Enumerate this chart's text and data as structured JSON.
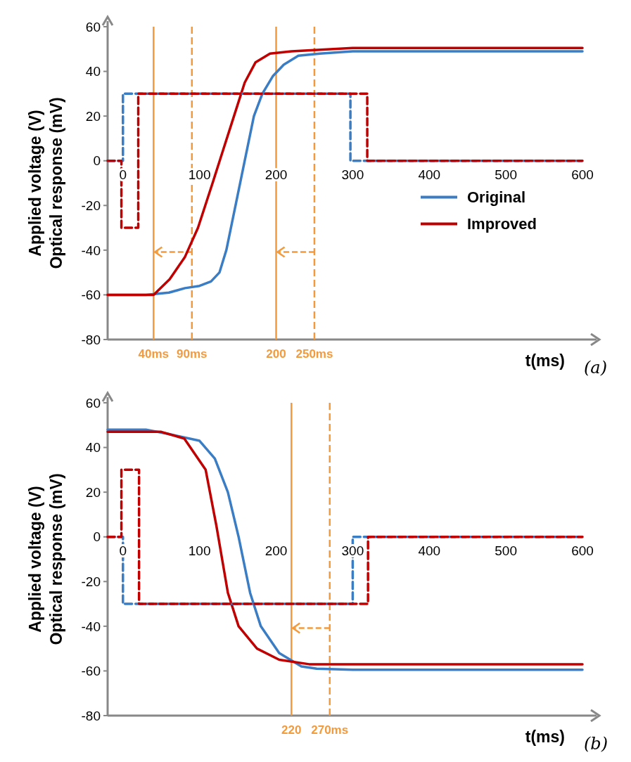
{
  "chart_data": [
    {
      "type": "line",
      "xlabel": "t(ms)",
      "ylabel": "Applied voltage (V)\nOptical response (mV)",
      "annotations": [
        "(a)"
      ],
      "xlim": [
        -20,
        600
      ],
      "ylim": [
        -80,
        60
      ],
      "xticks": [
        0,
        100,
        200,
        300,
        400,
        500,
        600
      ],
      "yticks": [
        -80,
        -60,
        -40,
        -20,
        0,
        20,
        40,
        60
      ],
      "legend": "right",
      "grid": false,
      "series": [
        {
          "name": "Original",
          "color": "#3a7dc4",
          "line_style": "solid",
          "x": [
            -20,
            30,
            60,
            81,
            100,
            115,
            126,
            135,
            150,
            159,
            171,
            182,
            196,
            210,
            229,
            257,
            300,
            400,
            500,
            600
          ],
          "values": [
            -60,
            -60,
            -59,
            -57,
            -56,
            -54,
            -50,
            -40,
            -15,
            0,
            20,
            30,
            38,
            43,
            47,
            48,
            49,
            49,
            49,
            49
          ]
        },
        {
          "name": "Improved",
          "color": "#c00000",
          "line_style": "solid",
          "x": [
            -20,
            20,
            40,
            61,
            81,
            98,
            117,
            131,
            145,
            159,
            173,
            192,
            220,
            300,
            400,
            500,
            600
          ],
          "values": [
            -60,
            -60,
            -60,
            -53,
            -43,
            -30,
            -10,
            5,
            20,
            35,
            44,
            48,
            49,
            50.5,
            50.5,
            50.5,
            50.5
          ]
        },
        {
          "color": "#3a7dc4",
          "line_style": "dashed",
          "x": [
            -20,
            0,
            0,
            297,
            297,
            600
          ],
          "values": [
            0,
            0,
            30,
            30,
            0,
            0
          ]
        },
        {
          "color": "#c00000",
          "line_style": "dashed",
          "x": [
            -20,
            -2,
            -2,
            20,
            20,
            319,
            319,
            600
          ],
          "values": [
            0,
            0,
            -30,
            -30,
            30,
            30,
            0,
            0
          ]
        }
      ],
      "ref_lines": [
        {
          "axis": "x",
          "value": 40,
          "label": "40ms",
          "color": "#f39a3c",
          "line_style": "solid"
        },
        {
          "axis": "x",
          "value": 90,
          "label": "90ms",
          "color": "#f39a3c",
          "line_style": "dashed"
        },
        {
          "axis": "x",
          "value": 200,
          "label": "200",
          "color": "#f39a3c",
          "line_style": "solid"
        },
        {
          "axis": "x",
          "value": 250,
          "label": "250ms",
          "color": "#f39a3c",
          "line_style": "dashed"
        }
      ]
    },
    {
      "type": "line",
      "xlabel": "t(ms)",
      "ylabel": "Applied voltage (V)\nOptical response (mV)",
      "annotations": [
        "(b)"
      ],
      "xlim": [
        -20,
        600
      ],
      "ylim": [
        -80,
        60
      ],
      "xticks": [
        0,
        100,
        200,
        300,
        400,
        500,
        600
      ],
      "yticks": [
        -80,
        -60,
        -40,
        -20,
        0,
        20,
        40,
        60
      ],
      "grid": false,
      "series": [
        {
          "color": "#3a7dc4",
          "line_style": "solid",
          "x": [
            -20,
            30,
            60,
            100,
            120,
            137,
            151,
            166,
            180,
            204,
            233,
            253,
            300,
            400,
            500,
            600
          ],
          "values": [
            48,
            48,
            46,
            43,
            35,
            20,
            0,
            -25,
            -40,
            -52,
            -58,
            -59,
            -59.5,
            -59.5,
            -59.5,
            -59.5
          ]
        },
        {
          "color": "#c00000",
          "line_style": "solid",
          "x": [
            -20,
            50,
            80,
            108,
            122,
            137,
            151,
            175,
            204,
            243,
            300,
            400,
            500,
            600
          ],
          "values": [
            47,
            47,
            44,
            30,
            5,
            -25,
            -40,
            -50,
            -55,
            -57,
            -57,
            -57,
            -57,
            -57
          ]
        },
        {
          "color": "#3a7dc4",
          "line_style": "dashed",
          "x": [
            -20,
            0,
            0,
            300,
            300,
            600
          ],
          "values": [
            0,
            0,
            -30,
            -30,
            0,
            0
          ]
        },
        {
          "color": "#c00000",
          "line_style": "dashed",
          "x": [
            -20,
            -2,
            -2,
            21,
            21,
            320,
            320,
            600
          ],
          "values": [
            0,
            0,
            30,
            30,
            -30,
            -30,
            0,
            0
          ]
        }
      ],
      "ref_lines": [
        {
          "axis": "x",
          "value": 220,
          "label": "220",
          "color": "#f39a3c",
          "line_style": "solid"
        },
        {
          "axis": "x",
          "value": 270,
          "label": "270ms",
          "color": "#f39a3c",
          "line_style": "dashed"
        }
      ]
    }
  ]
}
